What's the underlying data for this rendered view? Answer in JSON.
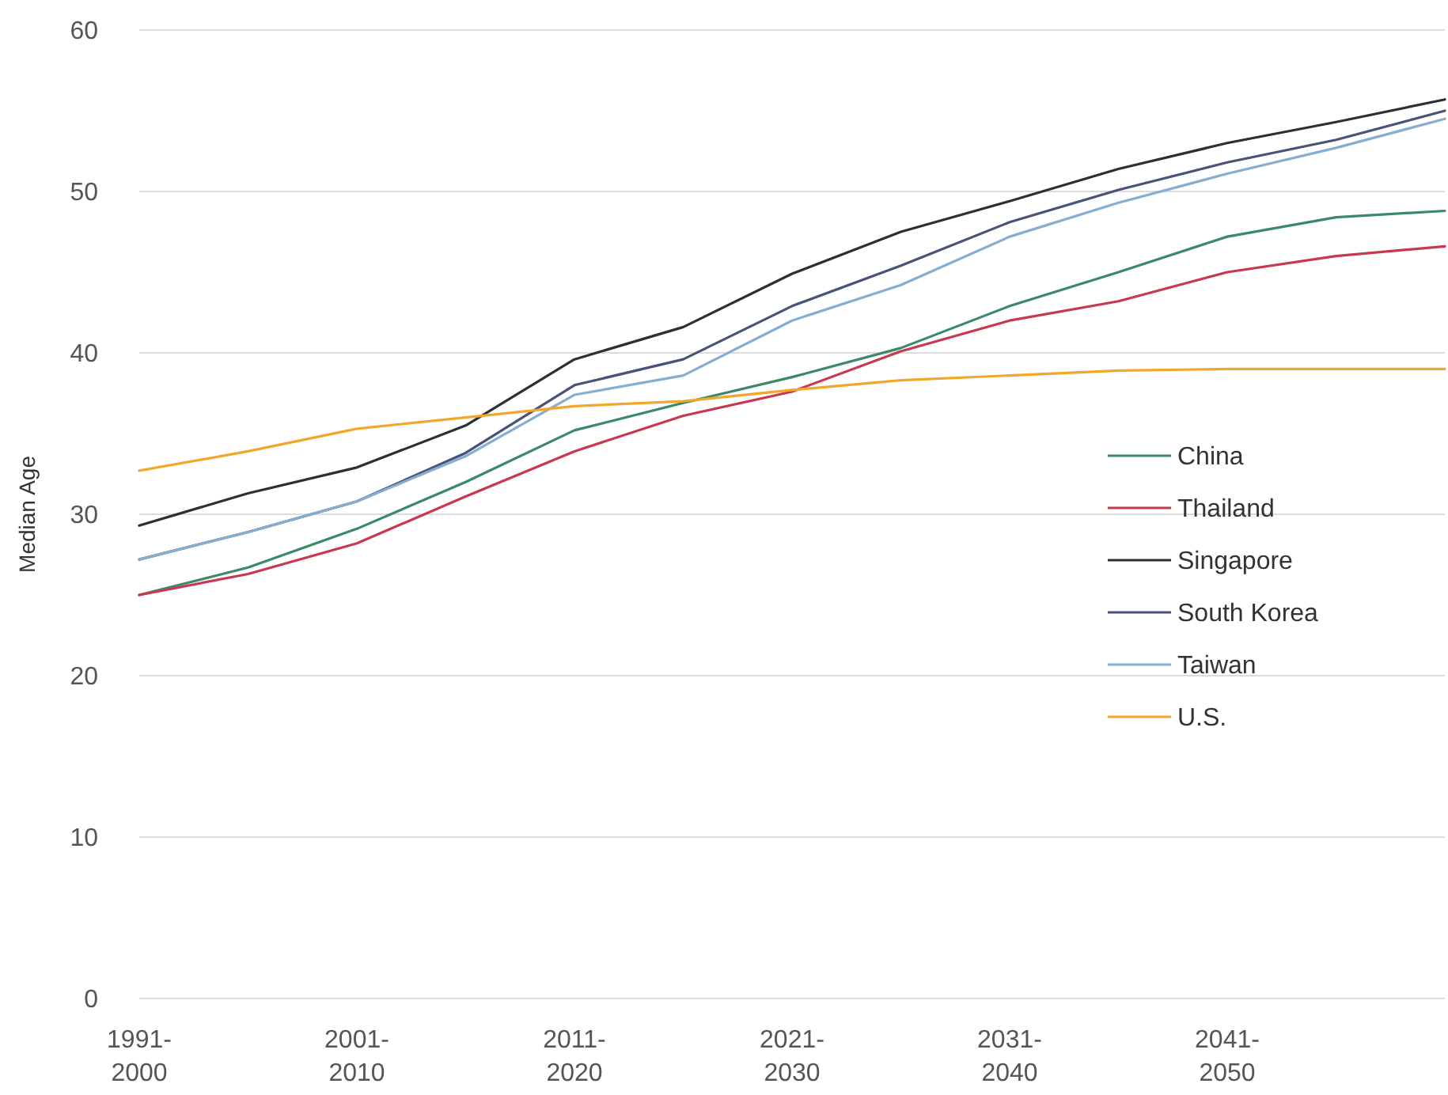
{
  "chart_data": {
    "type": "line",
    "ylabel": "Median Age",
    "categories": [
      "1991-\n2000",
      null,
      "2001-\n2010",
      null,
      "2011-\n2020",
      null,
      "2021-\n2030",
      null,
      "2031-\n2040",
      null,
      "2041-\n2050",
      null,
      null
    ],
    "ylim": [
      0,
      60
    ],
    "yticks": [
      0,
      10,
      20,
      30,
      40,
      50,
      60
    ],
    "grid": "y",
    "legend": "right",
    "marker": "none",
    "line_style": "solid",
    "series": [
      {
        "name": "China",
        "color": "#3a8a6a",
        "values": [
          25.0,
          26.7,
          29.1,
          32.0,
          35.2,
          36.9,
          38.5,
          40.3,
          42.9,
          45.0,
          47.2,
          48.4,
          48.8
        ]
      },
      {
        "name": "Thailand",
        "color": "#c8384f",
        "values": [
          25.0,
          26.3,
          28.2,
          31.1,
          33.9,
          36.1,
          37.6,
          40.1,
          42.0,
          43.2,
          45.0,
          46.0,
          46.6
        ]
      },
      {
        "name": "Singapore",
        "color": "#2b2f38",
        "values": [
          29.3,
          31.3,
          32.9,
          35.5,
          39.6,
          41.6,
          44.9,
          47.5,
          49.4,
          51.4,
          53.0,
          54.3,
          55.7
        ]
      },
      {
        "name": "South Korea",
        "color": "#4a5377",
        "values": [
          27.2,
          28.9,
          30.8,
          33.8,
          38.0,
          39.6,
          42.9,
          45.4,
          48.1,
          50.1,
          51.8,
          53.2,
          55.0
        ]
      },
      {
        "name": "Taiwan",
        "color": "#86aed0",
        "values": [
          27.2,
          28.9,
          30.8,
          33.6,
          37.4,
          38.6,
          42.0,
          44.2,
          47.2,
          49.3,
          51.1,
          52.7,
          54.5
        ]
      },
      {
        "name": "U.S.",
        "color": "#f2a72b",
        "values": [
          32.7,
          33.9,
          35.3,
          36.0,
          36.7,
          37.0,
          37.7,
          38.3,
          38.6,
          38.9,
          39.0,
          39.0,
          39.0
        ]
      }
    ]
  }
}
